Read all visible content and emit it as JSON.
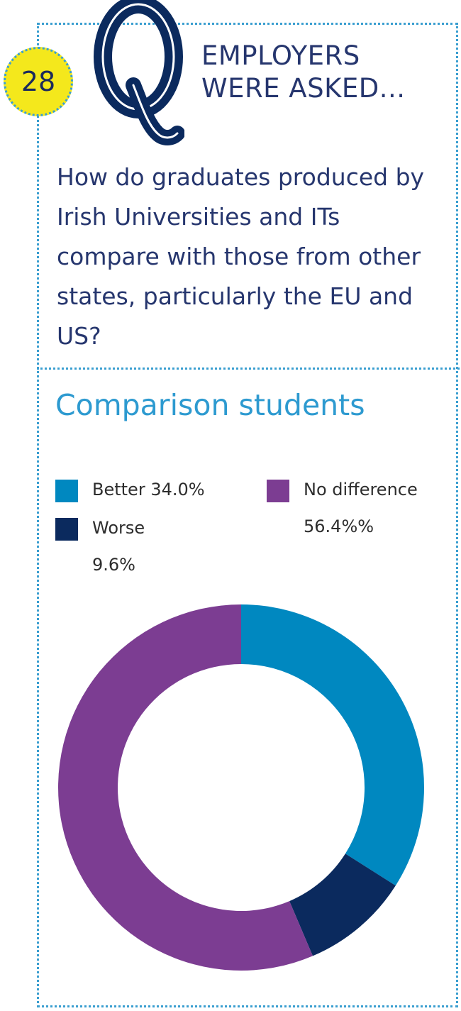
{
  "badge": {
    "number": "28"
  },
  "header": {
    "line1": "EMPLOYERS",
    "line2": "WERE ASKED..."
  },
  "question": "How do graduates produced by Irish Universities and ITs compare with those from other states, particularly the EU and US?",
  "colors": {
    "border": "#3a9ed0",
    "better": "#0088c0",
    "worse": "#0b2a5e",
    "no_difference": "#7c3d92",
    "text_navy": "#26366e",
    "title_blue": "#2d9ad0",
    "badge_yellow": "#f4e81c"
  },
  "legend": {
    "better": {
      "line1": "Better 34.0%"
    },
    "worse": {
      "line1": "Worse",
      "line2": "9.6%"
    },
    "no_difference": {
      "line1": "No difference",
      "line2": "56.4%%"
    }
  },
  "chart_data": {
    "type": "pie",
    "title": "Comparison students",
    "donut": true,
    "slices": [
      {
        "label": "Better",
        "value": 34.0,
        "color": "#0088c0"
      },
      {
        "label": "Worse",
        "value": 9.6,
        "color": "#0b2a5e"
      },
      {
        "label": "No difference",
        "value": 56.4,
        "color": "#7c3d92"
      }
    ],
    "legend_position": "top"
  }
}
